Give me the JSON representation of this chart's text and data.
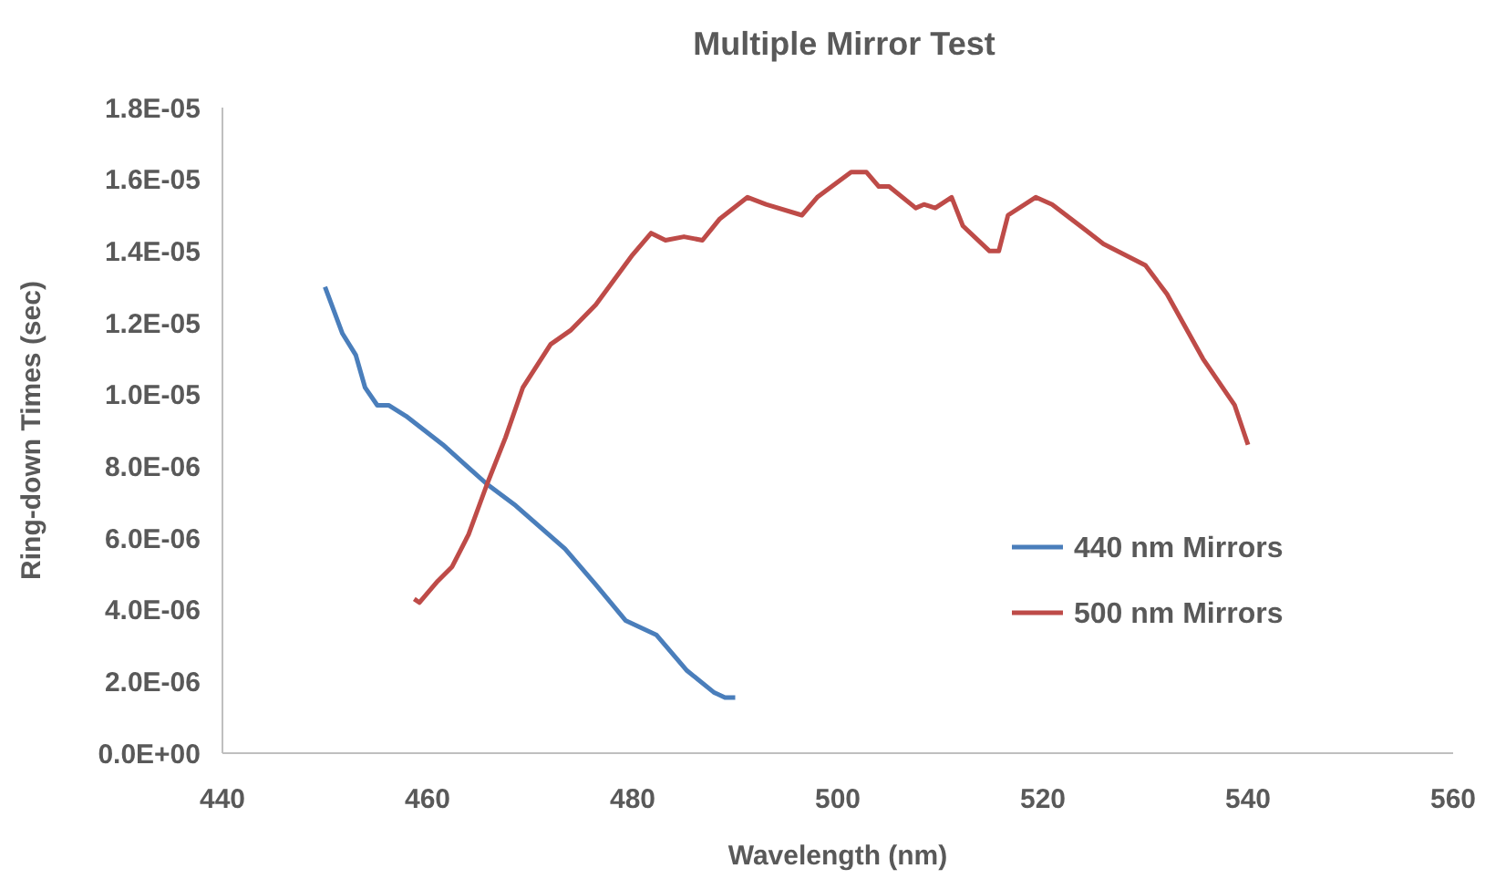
{
  "chart_data": {
    "type": "line",
    "title": "Multiple Mirror Test",
    "xlabel": "Wavelength (nm)",
    "ylabel": "Ring-down Times (sec)",
    "xlim": [
      440,
      560
    ],
    "xticks": [
      440,
      460,
      480,
      500,
      520,
      540,
      560
    ],
    "ylim": [
      0,
      1.8e-05
    ],
    "yticks": [
      {
        "value": 0,
        "label": "0.0E+00"
      },
      {
        "value": 2e-06,
        "label": "2.0E-06"
      },
      {
        "value": 4e-06,
        "label": "4.0E-06"
      },
      {
        "value": 6e-06,
        "label": "6.0E-06"
      },
      {
        "value": 8e-06,
        "label": "8.0E-06"
      },
      {
        "value": 1e-05,
        "label": "1.0E-05"
      },
      {
        "value": 1.2e-05,
        "label": "1.2E-05"
      },
      {
        "value": 1.4e-05,
        "label": "1.4E-05"
      },
      {
        "value": 1.6e-05,
        "label": "1.6E-05"
      },
      {
        "value": 1.8e-05,
        "label": "1.8E-05"
      }
    ],
    "grid": false,
    "legend": "right",
    "marker": "none",
    "line_style": "solid",
    "series": [
      {
        "name": "440 nm Mirrors",
        "color": "#4a7ebb",
        "x": [
          450,
          451.7,
          453,
          453.9,
          455.1,
          456.2,
          457.9,
          461.5,
          465.8,
          468.6,
          473.4,
          476.4,
          479.3,
          482.3,
          485.3,
          487.9,
          489,
          490
        ],
        "values": [
          1.3e-05,
          1.17e-05,
          1.11e-05,
          1.02e-05,
          9.7e-06,
          9.7e-06,
          9.4e-06,
          8.6e-06,
          7.5e-06,
          6.9e-06,
          5.7e-06,
          4.7e-06,
          3.7e-06,
          3.3e-06,
          2.3e-06,
          1.7e-06,
          1.55e-06,
          1.55e-06
        ]
      },
      {
        "name": "500 nm Mirrors",
        "color": "#be4b48",
        "x": [
          458.7,
          459.2,
          461,
          462.4,
          464,
          465.8,
          467.6,
          469.3,
          472,
          474,
          476.4,
          480,
          481.8,
          483.2,
          485,
          486.8,
          488.5,
          491.2,
          493,
          496.5,
          498,
          501.3,
          502.8,
          504,
          505,
          507.6,
          508.4,
          509.5,
          511.1,
          512.2,
          514.8,
          515.7,
          516.6,
          519.3,
          520.9,
          524.1,
          525.9,
          530,
          532.1,
          535.6,
          538.7,
          540
        ],
        "values": [
          4.3e-06,
          4.2e-06,
          4.8e-06,
          5.2e-06,
          6.1e-06,
          7.5e-06,
          8.8e-06,
          1.02e-05,
          1.14e-05,
          1.18e-05,
          1.25e-05,
          1.39e-05,
          1.45e-05,
          1.43e-05,
          1.44e-05,
          1.43e-05,
          1.49e-05,
          1.55e-05,
          1.53e-05,
          1.5e-05,
          1.55e-05,
          1.62e-05,
          1.62e-05,
          1.58e-05,
          1.58e-05,
          1.52e-05,
          1.53e-05,
          1.52e-05,
          1.55e-05,
          1.47e-05,
          1.4e-05,
          1.4e-05,
          1.5e-05,
          1.55e-05,
          1.53e-05,
          1.46e-05,
          1.42e-05,
          1.36e-05,
          1.28e-05,
          1.1e-05,
          9.7e-06,
          8.6e-06
        ]
      }
    ]
  }
}
